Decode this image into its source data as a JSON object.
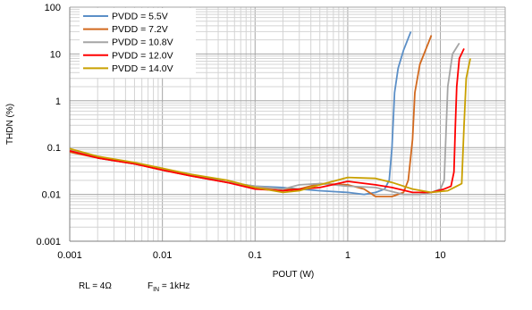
{
  "chart_data": {
    "type": "line",
    "xlabel": "POUT (W)",
    "ylabel": "THDN (%)",
    "xscale": "log",
    "yscale": "log",
    "xlim": [
      0.001,
      50
    ],
    "ylim": [
      0.001,
      100
    ],
    "x_ticks": [
      "0.001",
      "0.01",
      "0.1",
      "1",
      "10"
    ],
    "y_ticks": [
      "100",
      "10",
      "1",
      "0.1",
      "0.01",
      "0.001"
    ],
    "grid": true,
    "legend_position": "top-left",
    "series": [
      {
        "name": "PVDD = 5.5V",
        "color": "#5b8fc7",
        "points": [
          [
            0.001,
            0.085
          ],
          [
            0.002,
            0.06
          ],
          [
            0.005,
            0.045
          ],
          [
            0.01,
            0.035
          ],
          [
            0.02,
            0.027
          ],
          [
            0.05,
            0.018
          ],
          [
            0.1,
            0.015
          ],
          [
            0.2,
            0.014
          ],
          [
            0.3,
            0.013
          ],
          [
            0.5,
            0.012
          ],
          [
            1,
            0.011
          ],
          [
            1.5,
            0.01
          ],
          [
            2,
            0.011
          ],
          [
            2.5,
            0.013
          ],
          [
            2.8,
            0.02
          ],
          [
            3.0,
            0.1
          ],
          [
            3.2,
            1.5
          ],
          [
            3.5,
            5
          ],
          [
            4,
            12
          ],
          [
            4.8,
            30
          ]
        ]
      },
      {
        "name": "PVDD = 7.2V",
        "color": "#d2691e",
        "points": [
          [
            0.001,
            0.08
          ],
          [
            0.002,
            0.06
          ],
          [
            0.005,
            0.045
          ],
          [
            0.01,
            0.033
          ],
          [
            0.02,
            0.025
          ],
          [
            0.05,
            0.018
          ],
          [
            0.1,
            0.014
          ],
          [
            0.2,
            0.013
          ],
          [
            0.3,
            0.013
          ],
          [
            0.5,
            0.017
          ],
          [
            1,
            0.016
          ],
          [
            1.5,
            0.013
          ],
          [
            2,
            0.009
          ],
          [
            3,
            0.009
          ],
          [
            4,
            0.011
          ],
          [
            4.5,
            0.02
          ],
          [
            5,
            0.15
          ],
          [
            5.3,
            1.5
          ],
          [
            6,
            6
          ],
          [
            8,
            25
          ]
        ]
      },
      {
        "name": "PVDD = 10.8V",
        "color": "#a5a5a5",
        "points": [
          [
            0.001,
            0.09
          ],
          [
            0.002,
            0.065
          ],
          [
            0.005,
            0.045
          ],
          [
            0.01,
            0.035
          ],
          [
            0.02,
            0.025
          ],
          [
            0.05,
            0.018
          ],
          [
            0.1,
            0.015
          ],
          [
            0.2,
            0.013
          ],
          [
            0.3,
            0.016
          ],
          [
            0.5,
            0.017
          ],
          [
            1,
            0.015
          ],
          [
            2,
            0.014
          ],
          [
            4,
            0.01
          ],
          [
            6,
            0.01
          ],
          [
            8,
            0.011
          ],
          [
            10,
            0.013
          ],
          [
            11,
            0.02
          ],
          [
            11.5,
            0.2
          ],
          [
            12,
            2
          ],
          [
            13.5,
            10
          ],
          [
            16,
            17
          ]
        ]
      },
      {
        "name": "PVDD = 12.0V",
        "color": "#ff0000",
        "points": [
          [
            0.001,
            0.085
          ],
          [
            0.002,
            0.06
          ],
          [
            0.005,
            0.045
          ],
          [
            0.01,
            0.033
          ],
          [
            0.02,
            0.025
          ],
          [
            0.05,
            0.018
          ],
          [
            0.1,
            0.013
          ],
          [
            0.2,
            0.012
          ],
          [
            0.5,
            0.014
          ],
          [
            1,
            0.019
          ],
          [
            2,
            0.016
          ],
          [
            3,
            0.014
          ],
          [
            5,
            0.011
          ],
          [
            8,
            0.011
          ],
          [
            11,
            0.013
          ],
          [
            13,
            0.015
          ],
          [
            14,
            0.03
          ],
          [
            14.5,
            0.3
          ],
          [
            15,
            2
          ],
          [
            16,
            8
          ],
          [
            18,
            13
          ]
        ]
      },
      {
        "name": "PVDD = 14.0V",
        "color": "#c9a000",
        "points": [
          [
            0.001,
            0.095
          ],
          [
            0.002,
            0.065
          ],
          [
            0.005,
            0.048
          ],
          [
            0.01,
            0.036
          ],
          [
            0.02,
            0.027
          ],
          [
            0.05,
            0.02
          ],
          [
            0.1,
            0.014
          ],
          [
            0.2,
            0.011
          ],
          [
            0.3,
            0.012
          ],
          [
            0.5,
            0.016
          ],
          [
            1,
            0.023
          ],
          [
            2,
            0.022
          ],
          [
            3,
            0.018
          ],
          [
            5,
            0.013
          ],
          [
            8,
            0.011
          ],
          [
            12,
            0.012
          ],
          [
            16,
            0.016
          ],
          [
            17,
            0.017
          ],
          [
            18,
            0.3
          ],
          [
            19,
            3
          ],
          [
            21,
            8
          ]
        ]
      }
    ]
  },
  "conditions": {
    "load": "RL = 4Ω",
    "freq_prefix": "F",
    "freq_sub": "IN",
    "freq_value": " = 1kHz"
  }
}
